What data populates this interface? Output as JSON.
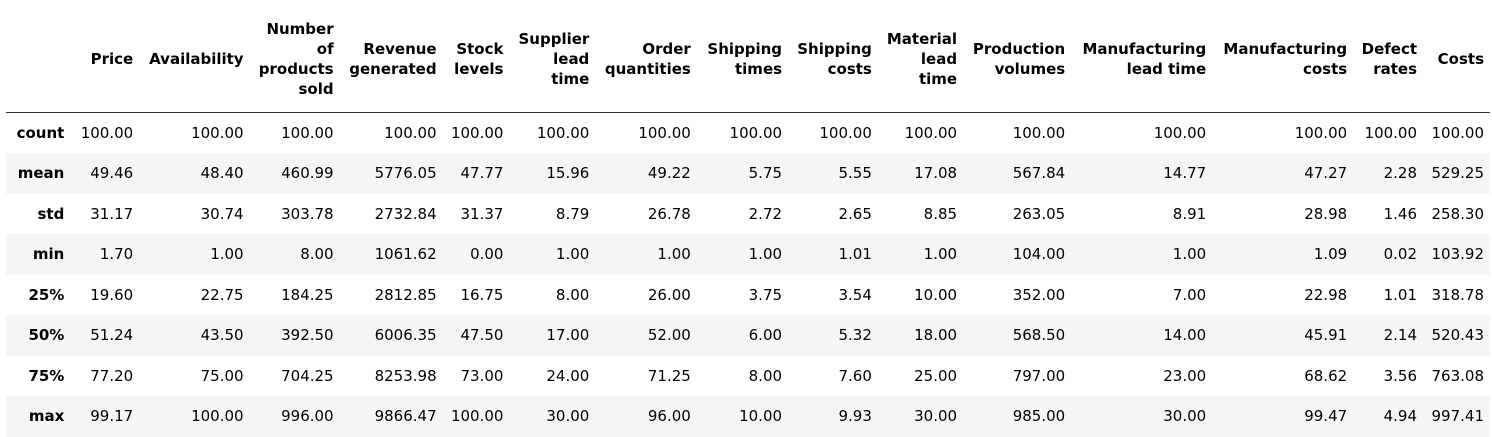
{
  "table": {
    "columns": [
      "Price",
      "Availability",
      "Number of products sold",
      "Revenue generated",
      "Stock levels",
      "Supplier lead time",
      "Order quantities",
      "Shipping times",
      "Shipping costs",
      "Material lead time",
      "Production volumes",
      "Manufacturing lead time",
      "Manufacturing costs",
      "Defect rates",
      "Costs"
    ],
    "rows": [
      {
        "label": "count",
        "values": [
          "100.00",
          "100.00",
          "100.00",
          "100.00",
          "100.00",
          "100.00",
          "100.00",
          "100.00",
          "100.00",
          "100.00",
          "100.00",
          "100.00",
          "100.00",
          "100.00",
          "100.00"
        ]
      },
      {
        "label": "mean",
        "values": [
          "49.46",
          "48.40",
          "460.99",
          "5776.05",
          "47.77",
          "15.96",
          "49.22",
          "5.75",
          "5.55",
          "17.08",
          "567.84",
          "14.77",
          "47.27",
          "2.28",
          "529.25"
        ]
      },
      {
        "label": "std",
        "values": [
          "31.17",
          "30.74",
          "303.78",
          "2732.84",
          "31.37",
          "8.79",
          "26.78",
          "2.72",
          "2.65",
          "8.85",
          "263.05",
          "8.91",
          "28.98",
          "1.46",
          "258.30"
        ]
      },
      {
        "label": "min",
        "values": [
          "1.70",
          "1.00",
          "8.00",
          "1061.62",
          "0.00",
          "1.00",
          "1.00",
          "1.00",
          "1.01",
          "1.00",
          "104.00",
          "1.00",
          "1.09",
          "0.02",
          "103.92"
        ]
      },
      {
        "label": "25%",
        "values": [
          "19.60",
          "22.75",
          "184.25",
          "2812.85",
          "16.75",
          "8.00",
          "26.00",
          "3.75",
          "3.54",
          "10.00",
          "352.00",
          "7.00",
          "22.98",
          "1.01",
          "318.78"
        ]
      },
      {
        "label": "50%",
        "values": [
          "51.24",
          "43.50",
          "392.50",
          "6006.35",
          "47.50",
          "17.00",
          "52.00",
          "6.00",
          "5.32",
          "18.00",
          "568.50",
          "14.00",
          "45.91",
          "2.14",
          "520.43"
        ]
      },
      {
        "label": "75%",
        "values": [
          "77.20",
          "75.00",
          "704.25",
          "8253.98",
          "73.00",
          "24.00",
          "71.25",
          "8.00",
          "7.60",
          "25.00",
          "797.00",
          "23.00",
          "68.62",
          "3.56",
          "763.08"
        ]
      },
      {
        "label": "max",
        "values": [
          "99.17",
          "100.00",
          "996.00",
          "9866.47",
          "100.00",
          "30.00",
          "96.00",
          "10.00",
          "9.93",
          "30.00",
          "985.00",
          "30.00",
          "99.47",
          "4.94",
          "997.41"
        ]
      }
    ]
  }
}
